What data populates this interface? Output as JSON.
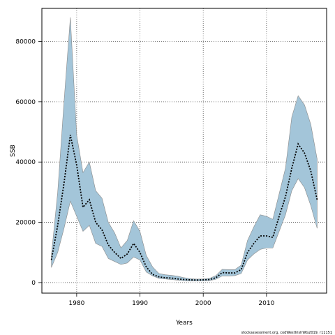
{
  "chart_data": {
    "type": "area",
    "xlabel": "Years",
    "ylabel": "SSB",
    "xlim": [
      1974.5,
      2019.5
    ],
    "ylim": [
      -3500,
      91000
    ],
    "x_ticks": [
      1980,
      1990,
      2000,
      2010
    ],
    "y_ticks": [
      0,
      20000,
      40000,
      60000,
      80000
    ],
    "grid": true,
    "credit": "stockassessment.org, codWestIrishWG2019, r11151",
    "colors": {
      "band": "#a3c5d9",
      "band_edge": "#8a8a8a",
      "line": "#000000",
      "grid": "#555555"
    },
    "years": [
      1976,
      1977,
      1978,
      1979,
      1980,
      1981,
      1982,
      1983,
      1984,
      1985,
      1986,
      1987,
      1988,
      1989,
      1990,
      1991,
      1992,
      1993,
      1994,
      1995,
      1996,
      1997,
      1998,
      1999,
      2000,
      2001,
      2002,
      2003,
      2004,
      2005,
      2006,
      2007,
      2008,
      2009,
      2010,
      2011,
      2012,
      2013,
      2014,
      2015,
      2016,
      2017,
      2018
    ],
    "series": [
      {
        "name": "",
        "role": "estimate",
        "values": [
          7500,
          19000,
          33000,
          49000,
          39000,
          25000,
          27500,
          20000,
          17500,
          12500,
          10000,
          8000,
          9500,
          13000,
          10000,
          5200,
          2700,
          1900,
          1600,
          1500,
          1200,
          1000,
          900,
          850,
          900,
          1000,
          1600,
          3300,
          3200,
          3200,
          4300,
          10000,
          13000,
          15500,
          15500,
          15000,
          22000,
          28500,
          38000,
          46000,
          43000,
          37000,
          27500
        ]
      },
      {
        "name": "",
        "role": "upper",
        "values": [
          9000,
          30000,
          60000,
          88000,
          49000,
          36500,
          40000,
          30500,
          28000,
          20000,
          16500,
          11500,
          14000,
          20500,
          17000,
          9000,
          5200,
          3000,
          2600,
          2400,
          2100,
          1600,
          1300,
          1150,
          1200,
          1400,
          2300,
          4400,
          4300,
          4300,
          5800,
          14000,
          18500,
          22500,
          22000,
          21000,
          29500,
          38000,
          55000,
          62000,
          59000,
          52500,
          41000
        ]
      },
      {
        "name": "",
        "role": "lower",
        "values": [
          5000,
          10000,
          18000,
          27000,
          22000,
          17000,
          19000,
          13000,
          12000,
          8000,
          7000,
          6000,
          6500,
          8500,
          7500,
          3500,
          2200,
          1400,
          1200,
          1000,
          800,
          600,
          500,
          500,
          550,
          650,
          1100,
          2200,
          2200,
          2300,
          3000,
          7500,
          9500,
          11000,
          11500,
          11500,
          17000,
          22500,
          30500,
          34500,
          31500,
          25500,
          18000
        ]
      }
    ]
  }
}
